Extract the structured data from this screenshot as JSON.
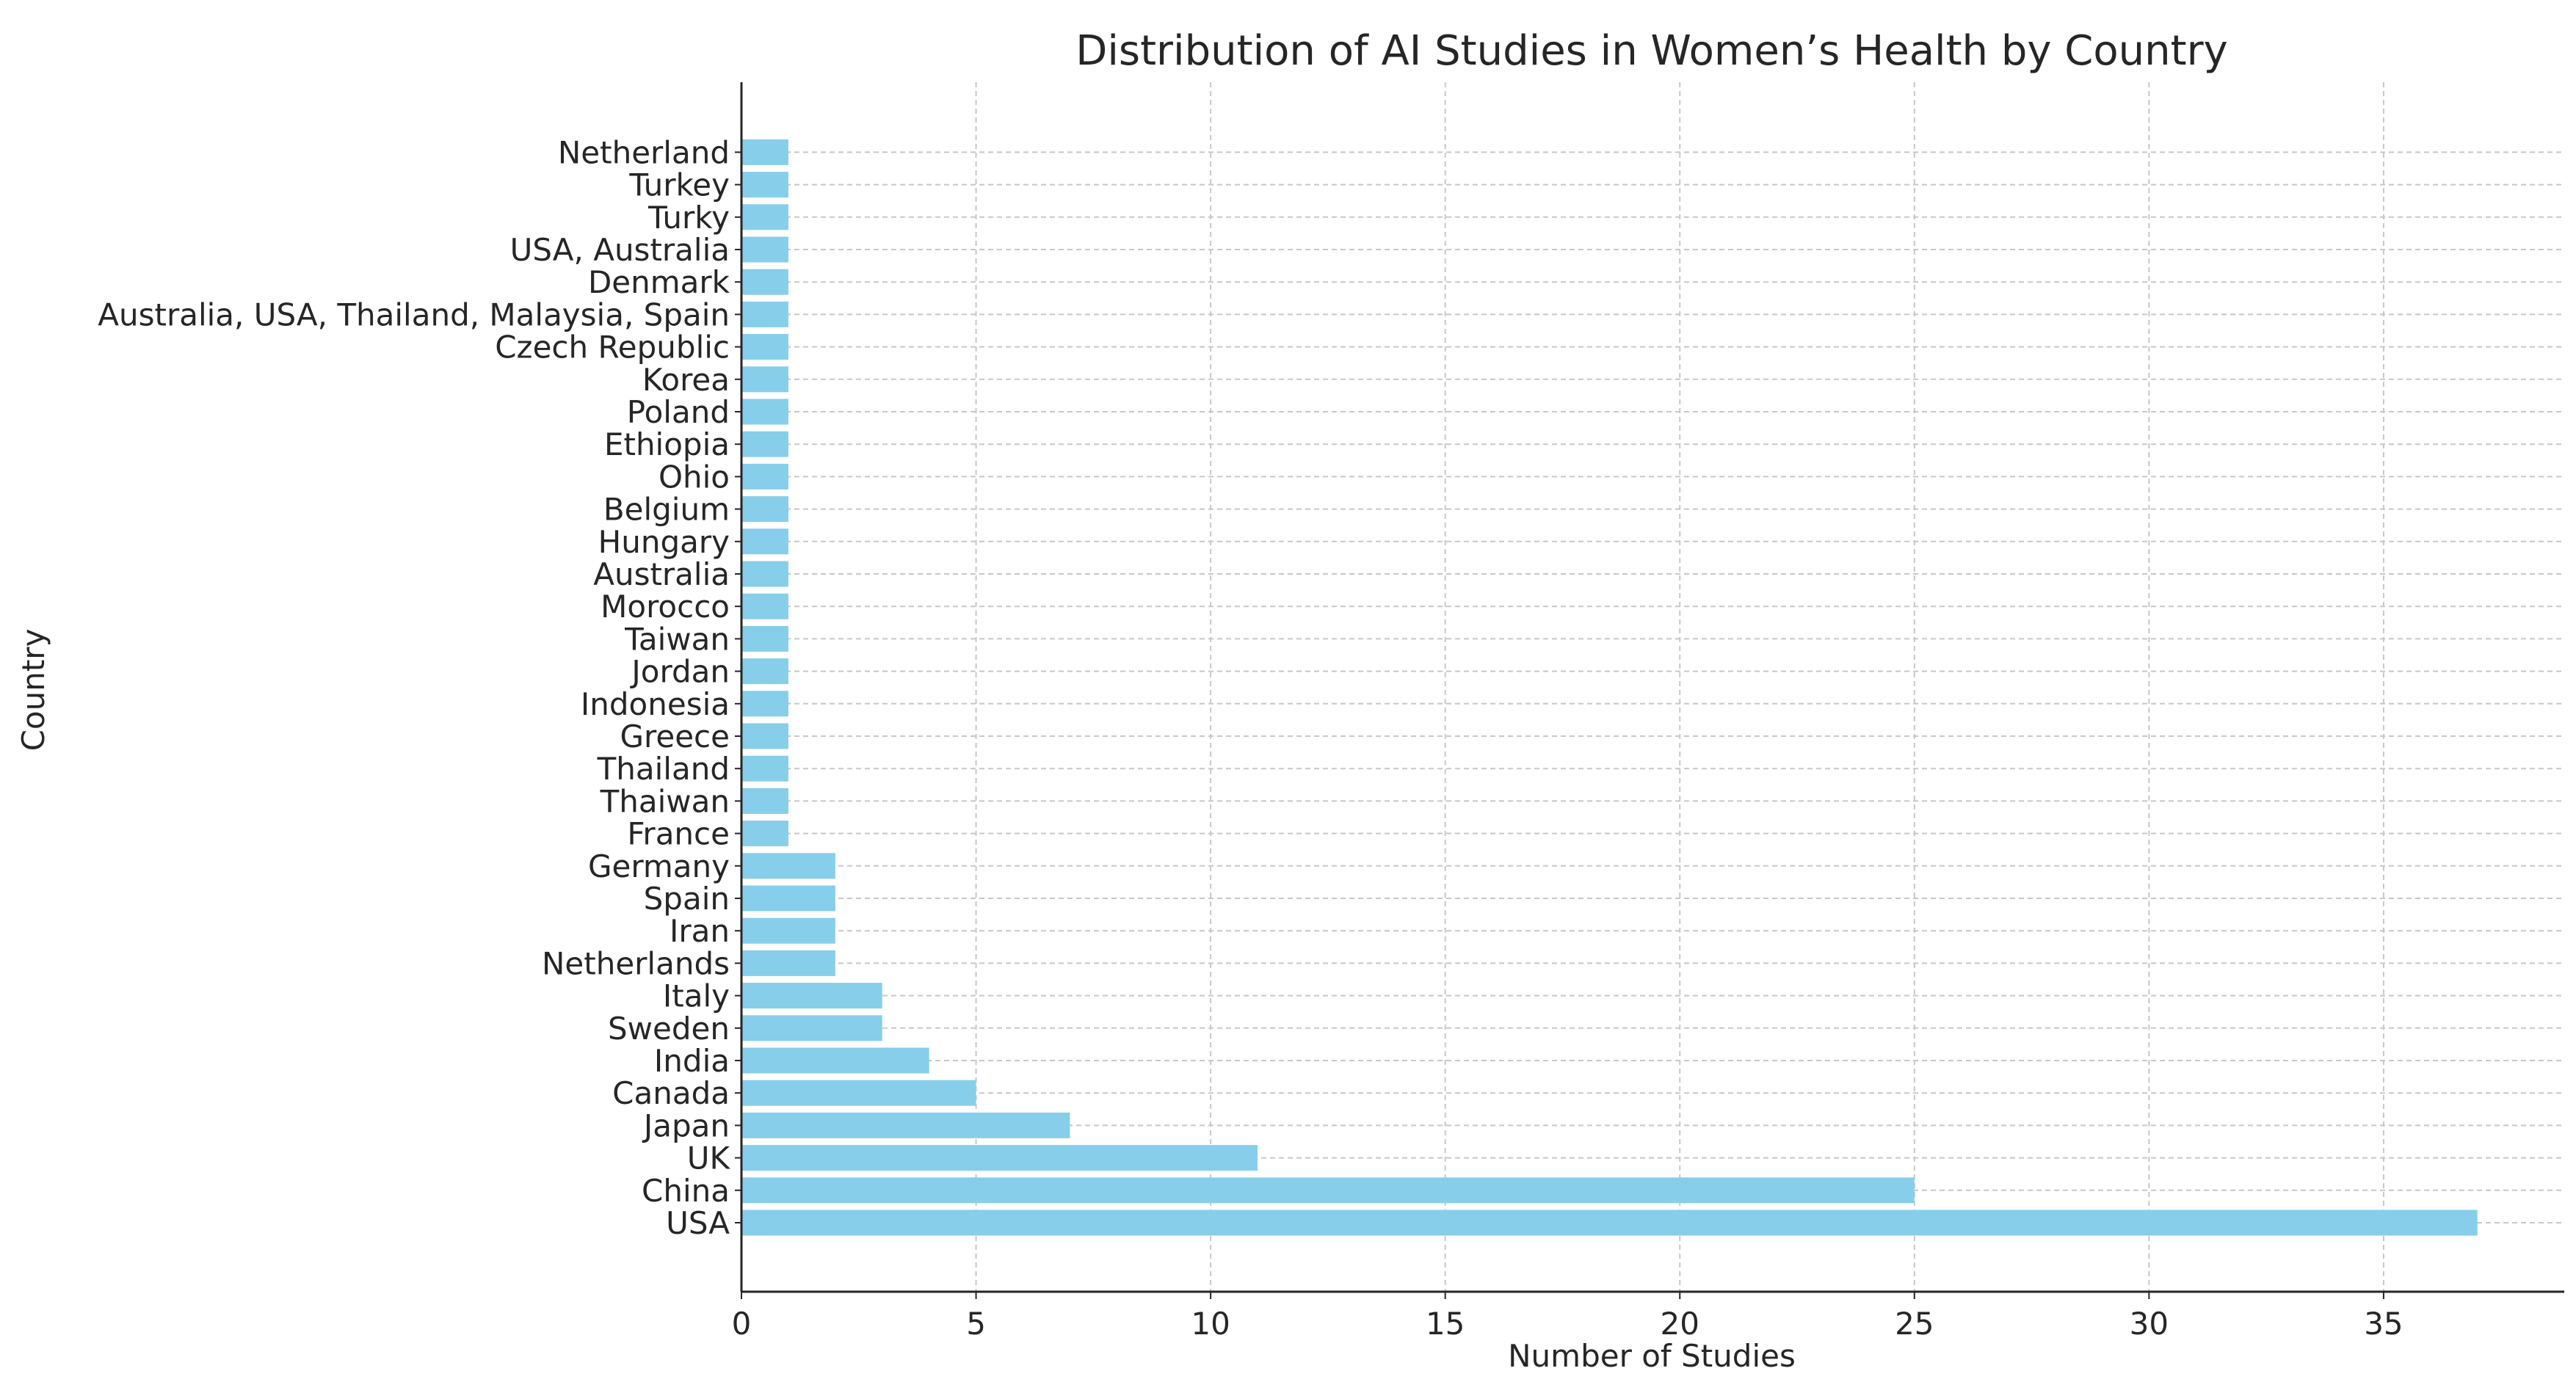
{
  "chart_data": {
    "type": "bar",
    "orientation": "horizontal",
    "title": "Distribution of AI Studies in Women’s Health by Country",
    "xlabel": "Number of Studies",
    "ylabel": "Country",
    "categories": [
      "USA",
      "China",
      "UK",
      "Japan",
      "Canada",
      "India",
      "Sweden",
      "Italy",
      "Netherlands",
      "Iran",
      "Spain",
      "Germany",
      "France",
      "Thaiwan",
      "Thailand",
      "Greece",
      "Indonesia",
      "Jordan",
      "Taiwan",
      "Morocco",
      "Australia",
      "Hungary",
      "Belgium",
      "Ohio",
      "Ethiopia ",
      "Poland",
      "Korea",
      "Czech Republic",
      "Australia, USA, Thailand, Malaysia, Spain",
      "Denmark",
      "USA, Australia",
      "Turky",
      "Turkey",
      "Netherland"
    ],
    "values": [
      37,
      25,
      11,
      7,
      5,
      4,
      3,
      3,
      2,
      2,
      2,
      2,
      1,
      1,
      1,
      1,
      1,
      1,
      1,
      1,
      1,
      1,
      1,
      1,
      1,
      1,
      1,
      1,
      1,
      1,
      1,
      1,
      1,
      1
    ],
    "xlim": [
      0,
      38.85
    ],
    "xticks": [
      0,
      5,
      10,
      15,
      20,
      25,
      30,
      35
    ],
    "grid": true,
    "bar_color": "#87ceeb",
    "grid_color": "#c8c8c8",
    "axis_color": "#262626",
    "text_color": "#262626",
    "title_color": "#3a3a3a"
  }
}
